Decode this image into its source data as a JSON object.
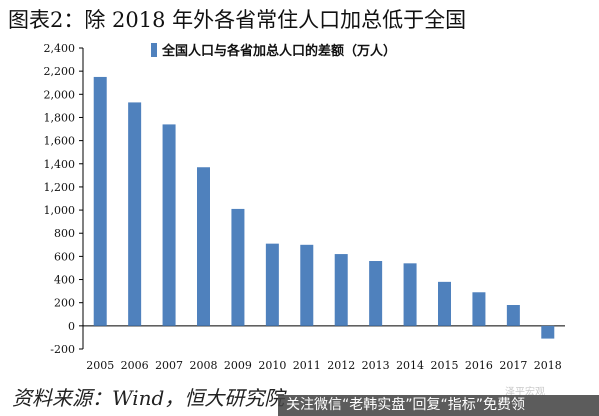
{
  "title": "图表2：除 2018 年外各省常住人口加总低于全国",
  "source": "资料来源：Wind，恒大研究院",
  "watermark": "泽平宏观",
  "promo_banner": "关注微信“老韩实盘”回复“指标”免费领",
  "colors": {
    "bar": "#4f81bd",
    "axis": "#000000"
  },
  "chart_data": {
    "type": "bar",
    "categories": [
      "2005",
      "2006",
      "2007",
      "2008",
      "2009",
      "2010",
      "2011",
      "2012",
      "2013",
      "2014",
      "2015",
      "2016",
      "2017",
      "2018"
    ],
    "series": [
      {
        "name": "全国人口与各省加总人口的差额（万人）",
        "values": [
          2150,
          1930,
          1740,
          1370,
          1010,
          710,
          700,
          620,
          560,
          540,
          380,
          290,
          180,
          -110
        ]
      }
    ],
    "yticks": [
      -200,
      0,
      200,
      400,
      600,
      800,
      1000,
      1200,
      1400,
      1600,
      1800,
      2000,
      2200,
      2400
    ],
    "ytick_labels": [
      "-200",
      "0",
      "200",
      "400",
      "600",
      "800",
      "1,000",
      "1,200",
      "1,400",
      "1,600",
      "1,800",
      "2,000",
      "2,200",
      "2,400"
    ],
    "ylim": [
      -200,
      2400
    ],
    "grid": false,
    "legend": "top"
  }
}
